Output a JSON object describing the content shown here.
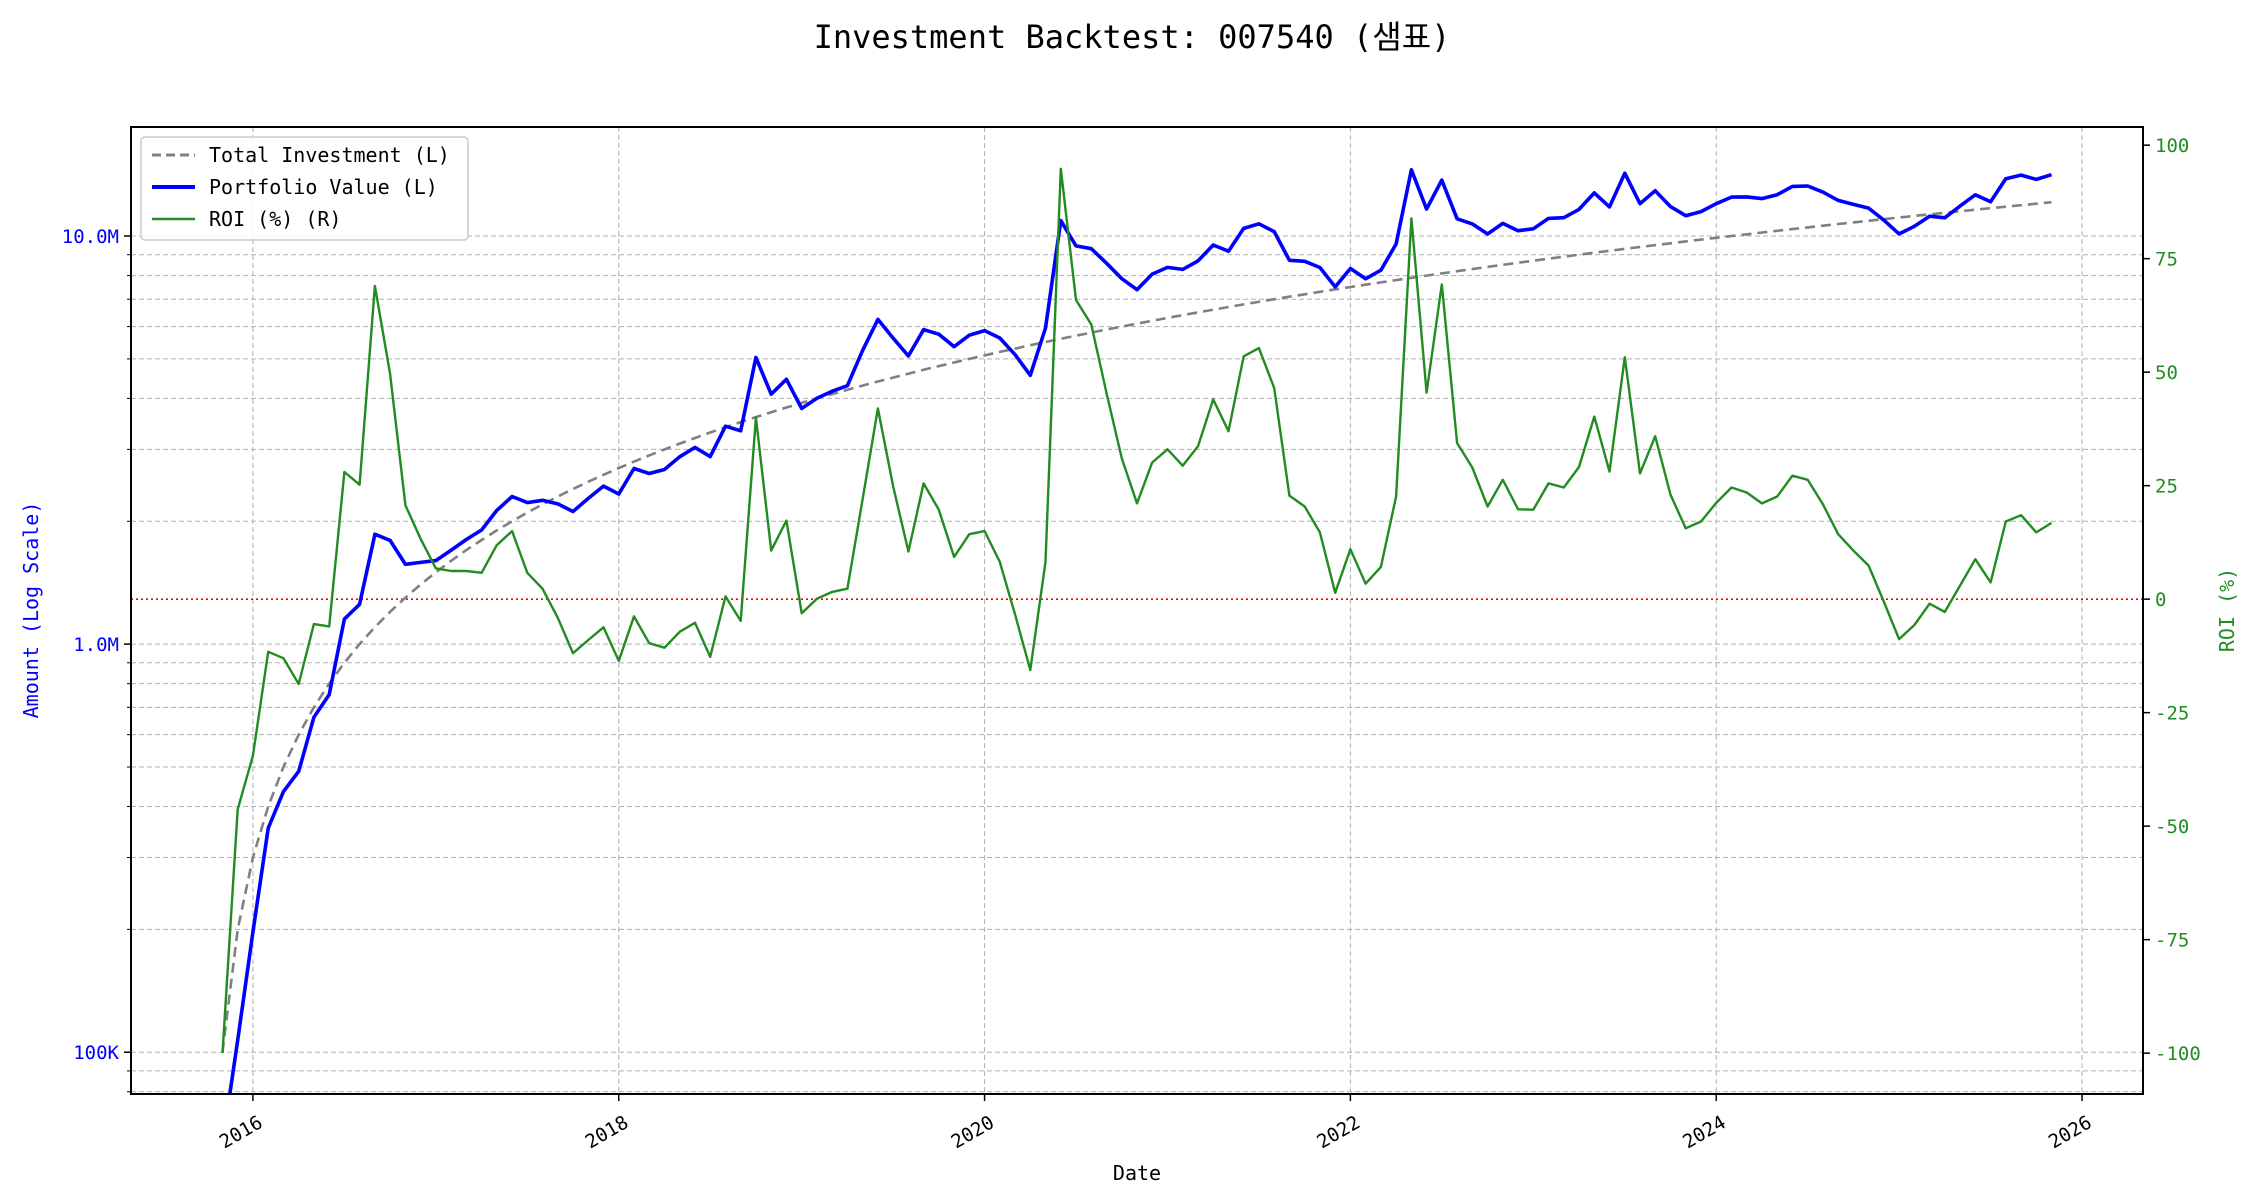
{
  "chart_data": {
    "type": "line",
    "title": "Investment Backtest: 007540 (샘표)",
    "xlabel": "Date",
    "ylabel_left": "Amount (Log Scale)",
    "ylabel_right": "ROI (%)",
    "left_axis": {
      "scale": "log",
      "ylim": [
        79000,
        18500000
      ],
      "ticks": [
        100000,
        1000000,
        10000000
      ],
      "tick_labels": [
        "100K",
        "1.0M",
        "10.0M"
      ],
      "color": "#0000ff"
    },
    "right_axis": {
      "scale": "linear",
      "ylim": [
        -109,
        104
      ],
      "ticks": [
        -100,
        -75,
        -50,
        -25,
        0,
        25,
        50,
        75,
        100
      ],
      "tick_labels": [
        "-100",
        "-75",
        "-50",
        "-25",
        "0",
        "25",
        "50",
        "75",
        "100"
      ],
      "color": "#228b22"
    },
    "x_axis": {
      "xlim": [
        "2015-05",
        "2026-05"
      ],
      "ticks": [
        "2016",
        "2018",
        "2020",
        "2022",
        "2024",
        "2026"
      ],
      "tick_labels": [
        "2016",
        "2018",
        "2020",
        "2022",
        "2024",
        "2026"
      ]
    },
    "grid": true,
    "legend": {
      "placement": "top-left",
      "entries": [
        "Total Investment (L)",
        "Portfolio Value (L)",
        "ROI (%) (R)"
      ]
    },
    "reference_line": {
      "axis": "right",
      "value": 0,
      "color": "#ff0000",
      "style": "dotted"
    },
    "x": [
      "2015-11",
      "2015-12",
      "2016-01",
      "2016-02",
      "2016-03",
      "2016-04",
      "2016-05",
      "2016-06",
      "2016-07",
      "2016-08",
      "2016-09",
      "2016-10",
      "2016-11",
      "2016-12",
      "2017-01",
      "2017-02",
      "2017-03",
      "2017-04",
      "2017-05",
      "2017-06",
      "2017-07",
      "2017-08",
      "2017-09",
      "2017-10",
      "2017-11",
      "2017-12",
      "2018-01",
      "2018-02",
      "2018-03",
      "2018-04",
      "2018-05",
      "2018-06",
      "2018-07",
      "2018-08",
      "2018-09",
      "2018-10",
      "2018-11",
      "2018-12",
      "2019-01",
      "2019-02",
      "2019-03",
      "2019-04",
      "2019-05",
      "2019-06",
      "2019-07",
      "2019-08",
      "2019-09",
      "2019-10",
      "2019-11",
      "2019-12",
      "2020-01",
      "2020-02",
      "2020-03",
      "2020-04",
      "2020-05",
      "2020-06",
      "2020-07",
      "2020-08",
      "2020-09",
      "2020-10",
      "2020-11",
      "2020-12",
      "2021-01",
      "2021-02",
      "2021-03",
      "2021-04",
      "2021-05",
      "2021-06",
      "2021-07",
      "2021-08",
      "2021-09",
      "2021-10",
      "2021-11",
      "2021-12",
      "2022-01",
      "2022-02",
      "2022-03",
      "2022-04",
      "2022-05",
      "2022-06",
      "2022-07",
      "2022-08",
      "2022-09",
      "2022-10",
      "2022-11",
      "2022-12",
      "2023-01",
      "2023-02",
      "2023-03",
      "2023-04",
      "2023-05",
      "2023-06",
      "2023-07",
      "2023-08",
      "2023-09",
      "2023-10",
      "2023-11",
      "2023-12",
      "2024-01",
      "2024-02",
      "2024-03",
      "2024-04",
      "2024-05",
      "2024-06",
      "2024-07",
      "2024-08",
      "2024-09",
      "2024-10",
      "2024-11",
      "2024-12",
      "2025-01",
      "2025-02",
      "2025-03",
      "2025-04",
      "2025-05",
      "2025-06",
      "2025-07",
      "2025-08",
      "2025-09",
      "2025-10",
      "2025-11"
    ],
    "series": [
      {
        "name": "Total Investment (L)",
        "axis": "left",
        "color": "#808080",
        "style": "dashed",
        "unit": "M",
        "values": [
          0.1,
          0.2,
          0.3,
          0.4,
          0.5,
          0.6,
          0.7,
          0.8,
          0.9,
          1.0,
          1.1,
          1.2,
          1.3,
          1.4,
          1.5,
          1.6,
          1.7,
          1.8,
          1.9,
          2.0,
          2.1,
          2.2,
          2.3,
          2.4,
          2.5,
          2.6,
          2.7,
          2.8,
          2.9,
          3.0,
          3.1,
          3.2,
          3.3,
          3.4,
          3.5,
          3.6,
          3.7,
          3.8,
          3.9,
          4.0,
          4.1,
          4.2,
          4.3,
          4.4,
          4.5,
          4.6,
          4.7,
          4.8,
          4.9,
          5.0,
          5.1,
          5.2,
          5.3,
          5.4,
          5.5,
          5.6,
          5.7,
          5.8,
          5.9,
          6.0,
          6.1,
          6.2,
          6.3,
          6.4,
          6.5,
          6.6,
          6.7,
          6.8,
          6.9,
          7.0,
          7.1,
          7.2,
          7.3,
          7.4,
          7.5,
          7.6,
          7.7,
          7.8,
          7.9,
          8.0,
          8.1,
          8.2,
          8.3,
          8.4,
          8.5,
          8.6,
          8.7,
          8.8,
          8.9,
          9.0,
          9.1,
          9.2,
          9.3,
          9.4,
          9.5,
          9.6,
          9.7,
          9.8,
          9.9,
          10.0,
          10.1,
          10.2,
          10.3,
          10.4,
          10.5,
          10.6,
          10.7,
          10.8,
          10.9,
          11.0,
          11.1,
          11.2,
          11.3,
          11.4,
          11.5,
          11.6,
          11.7,
          11.8,
          11.9,
          12.0,
          12.1
        ]
      },
      {
        "name": "Portfolio Value (L)",
        "axis": "left",
        "color": "#0000ff",
        "style": "solid",
        "unit": "M",
        "values": [
          0,
          0.107,
          0.197,
          0.354,
          0.435,
          0.488,
          0.662,
          0.752,
          1.152,
          1.252,
          1.859,
          1.795,
          1.569,
          1.586,
          1.602,
          1.699,
          1.805,
          1.904,
          2.126,
          2.3,
          2.222,
          2.251,
          2.206,
          2.114,
          2.275,
          2.439,
          2.333,
          2.694,
          2.619,
          2.679,
          2.877,
          3.034,
          2.881,
          3.42,
          3.332,
          5.04,
          4.096,
          4.457,
          3.779,
          4.004,
          4.166,
          4.297,
          5.246,
          6.248,
          5.621,
          5.083,
          5.899,
          5.746,
          5.356,
          5.715,
          5.865,
          5.626,
          5.12,
          4.558,
          5.951,
          10.909,
          9.456,
          9.309,
          8.579,
          7.86,
          7.387,
          8.066,
          8.379,
          8.282,
          8.691,
          9.504,
          9.179,
          10.438,
          10.716,
          10.255,
          8.719,
          8.669,
          8.373,
          7.504,
          8.325,
          7.858,
          8.247,
          9.563,
          14.528,
          11.64,
          13.713,
          11.021,
          10.707,
          10.114,
          10.736,
          10.303,
          10.414,
          11.044,
          11.089,
          11.619,
          12.758,
          11.785,
          14.257,
          12.004,
          12.911,
          11.808,
          11.213,
          11.476,
          11.999,
          12.46,
          12.474,
          12.352,
          12.628,
          13.229,
          13.262,
          12.815,
          12.23,
          11.956,
          11.707,
          10.934,
          10.123,
          10.562,
          11.187,
          11.081,
          11.845,
          12.621,
          12.133,
          13.818,
          14.102,
          13.764,
          14.133
        ]
      },
      {
        "name": "ROI (%) (R)",
        "axis": "right",
        "color": "#228b22",
        "style": "solid",
        "unit": "%",
        "values": [
          -100,
          -46.3,
          -34.5,
          -11.6,
          -13,
          -18.7,
          -5.5,
          -6,
          28,
          25.2,
          69,
          49.6,
          20.7,
          13.3,
          6.8,
          6.2,
          6.2,
          5.8,
          11.9,
          15,
          5.8,
          2.3,
          -4.1,
          -11.9,
          -9,
          -6.2,
          -13.6,
          -3.8,
          -9.7,
          -10.7,
          -7.2,
          -5.2,
          -12.7,
          0.6,
          -4.8,
          40,
          10.7,
          17.3,
          -3.1,
          0.1,
          1.6,
          2.3,
          22,
          42,
          24.9,
          10.5,
          25.5,
          19.7,
          9.3,
          14.3,
          15,
          8.2,
          -3.4,
          -15.6,
          8.2,
          94.8,
          65.9,
          60.5,
          45.4,
          31,
          21.1,
          30.1,
          33,
          29.4,
          33.7,
          44,
          37,
          53.5,
          55.3,
          46.5,
          22.8,
          20.4,
          14.7,
          1.4,
          11,
          3.4,
          7.1,
          22.6,
          83.9,
          45.5,
          69.3,
          34.4,
          29,
          20.4,
          26.3,
          19.8,
          19.7,
          25.5,
          24.6,
          29.1,
          40.2,
          28.1,
          53.3,
          27.7,
          35.9,
          23,
          15.6,
          17.1,
          21.2,
          24.6,
          23.5,
          21.1,
          22.6,
          27.2,
          26.3,
          20.9,
          14.3,
          10.7,
          7.4,
          -0.6,
          -8.8,
          -5.7,
          -1,
          -2.8,
          3,
          8.8,
          3.7,
          17.1,
          18.5,
          14.7,
          16.8
        ]
      }
    ]
  }
}
